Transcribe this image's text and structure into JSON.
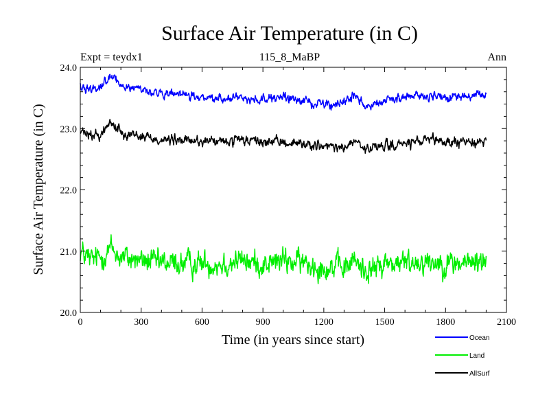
{
  "chart_data": {
    "type": "line",
    "title": "Surface Air Temperature (in C)",
    "subtitle_left": "Expt = teydx1",
    "subtitle_center": "115_8_MaBP",
    "subtitle_right": "Ann",
    "xlabel": "Time (in years since start)",
    "ylabel": "Surface Air Temperature (in C)",
    "xlim": [
      0,
      2100
    ],
    "ylim": [
      20.0,
      24.0
    ],
    "x_ticks": [
      0,
      300,
      600,
      900,
      1200,
      1500,
      1800,
      2100
    ],
    "x_tick_labels": [
      "0",
      "300",
      "600",
      "900",
      "1200",
      "1500",
      "1800",
      "2100"
    ],
    "y_ticks": [
      20.0,
      21.0,
      22.0,
      23.0,
      24.0
    ],
    "y_tick_labels": [
      "20.0",
      "21.0",
      "22.0",
      "23.0",
      "24.0"
    ],
    "x_end": 2000,
    "series": [
      {
        "name": "Ocean",
        "color": "#0000ff",
        "noise": 0.06,
        "anchors_x": [
          0,
          50,
          100,
          150,
          200,
          300,
          400,
          500,
          600,
          700,
          800,
          900,
          1000,
          1100,
          1200,
          1300,
          1350,
          1400,
          1450,
          1500,
          1600,
          1700,
          1800,
          1900,
          2000
        ],
        "anchors_y": [
          23.7,
          23.65,
          23.7,
          23.85,
          23.7,
          23.65,
          23.55,
          23.55,
          23.5,
          23.5,
          23.5,
          23.48,
          23.5,
          23.45,
          23.4,
          23.4,
          23.55,
          23.4,
          23.4,
          23.45,
          23.5,
          23.55,
          23.5,
          23.52,
          23.55
        ]
      },
      {
        "name": "Land",
        "color": "#00ee00",
        "noise": 0.17,
        "anchors_x": [
          0,
          50,
          100,
          150,
          200,
          300,
          400,
          500,
          600,
          700,
          800,
          900,
          1000,
          1100,
          1200,
          1300,
          1350,
          1400,
          1450,
          1500,
          1600,
          1700,
          1800,
          1900,
          2000
        ],
        "anchors_y": [
          21.0,
          20.85,
          20.9,
          21.05,
          20.9,
          20.85,
          20.8,
          20.8,
          20.8,
          20.8,
          20.85,
          20.78,
          20.85,
          20.8,
          20.75,
          20.72,
          20.85,
          20.7,
          20.7,
          20.8,
          20.8,
          20.85,
          20.8,
          20.8,
          20.85
        ]
      },
      {
        "name": "AllSurf",
        "color": "#000000",
        "noise": 0.07,
        "anchors_x": [
          0,
          50,
          100,
          150,
          200,
          300,
          400,
          500,
          600,
          700,
          800,
          900,
          1000,
          1100,
          1200,
          1300,
          1350,
          1400,
          1450,
          1500,
          1600,
          1700,
          1800,
          1900,
          2000
        ],
        "anchors_y": [
          22.95,
          22.88,
          22.9,
          23.1,
          22.95,
          22.88,
          22.82,
          22.8,
          22.8,
          22.78,
          22.8,
          22.78,
          22.78,
          22.75,
          22.7,
          22.68,
          22.8,
          22.65,
          22.68,
          22.72,
          22.75,
          22.8,
          22.78,
          22.78,
          22.8
        ]
      }
    ],
    "legend_position": "bottom-right"
  }
}
